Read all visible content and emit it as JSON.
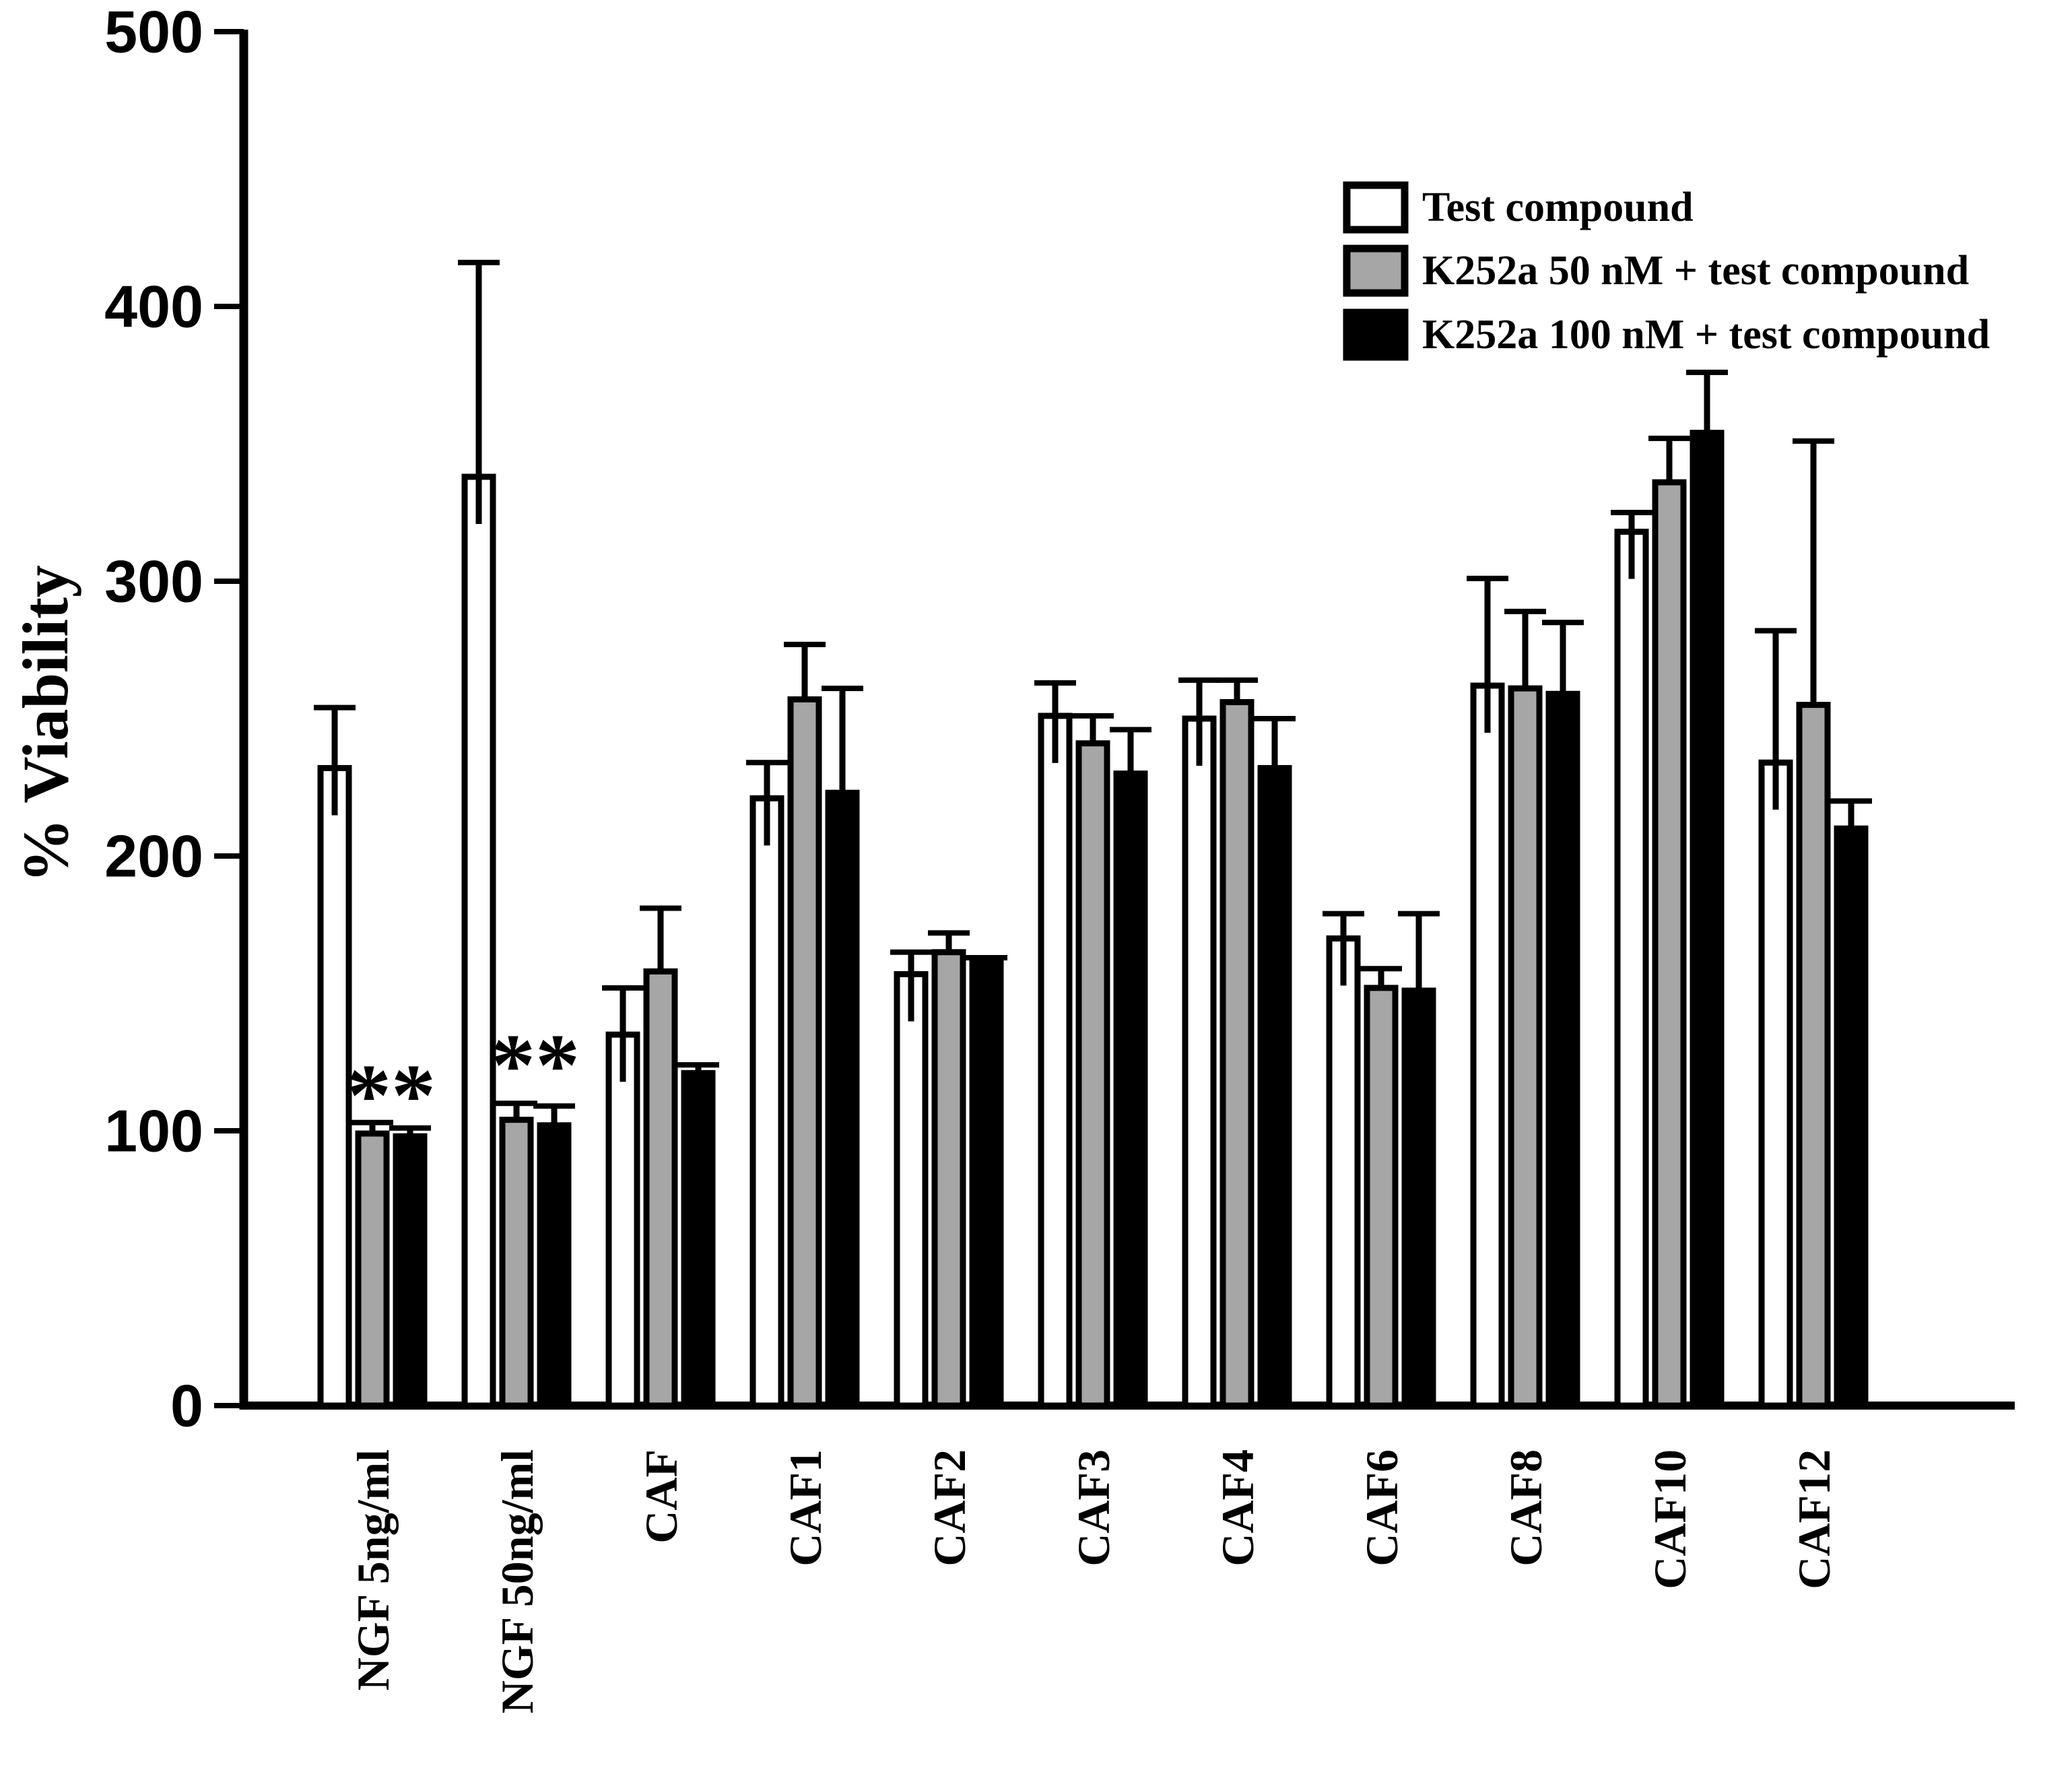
{
  "figure": {
    "background": "#ffffff",
    "frame_color": "#000000"
  },
  "chart_data": {
    "type": "bar",
    "title": "",
    "xlabel": "",
    "ylabel": "% Viability",
    "ylim": [
      0,
      500
    ],
    "yticks": [
      0,
      100,
      200,
      300,
      400,
      500
    ],
    "grid": false,
    "legend_position": "top-right",
    "categories": [
      "NGF 5ng/ml",
      "NGF 50ng/ml",
      "CAF",
      "CAF1",
      "CAF2",
      "CAF3",
      "CAF4",
      "CAF6",
      "CAF8",
      "CAF10",
      "CAF12"
    ],
    "series": [
      {
        "name": "Test compound",
        "fill": "#ffffff",
        "values": [
          232,
          338,
          135,
          221,
          157,
          251,
          250,
          170,
          262,
          318,
          234
        ],
        "errors_plus": [
          22,
          78,
          17,
          13,
          8,
          12,
          14,
          9,
          39,
          7,
          48
        ]
      },
      {
        "name": "K252a 50 nM + test compound",
        "fill": "#a6a6a6",
        "values": [
          99,
          104,
          158,
          257,
          165,
          241,
          256,
          152,
          261,
          336,
          255
        ],
        "errors_plus": [
          4,
          6,
          23,
          20,
          7,
          10,
          8,
          7,
          28,
          16,
          96
        ]
      },
      {
        "name": "K252a 100 nM + test compound",
        "fill": "#000000",
        "values": [
          98,
          102,
          121,
          223,
          161,
          230,
          232,
          151,
          259,
          354,
          210
        ],
        "errors_plus": [
          3,
          7,
          3,
          38,
          2,
          16,
          18,
          28,
          26,
          22,
          10
        ]
      }
    ],
    "annotations": [
      {
        "text": "**",
        "category_index": 0,
        "between_series": [
          1,
          2
        ],
        "y": 113
      },
      {
        "text": "**",
        "category_index": 1,
        "between_series": [
          1,
          2
        ],
        "y": 124
      }
    ]
  }
}
